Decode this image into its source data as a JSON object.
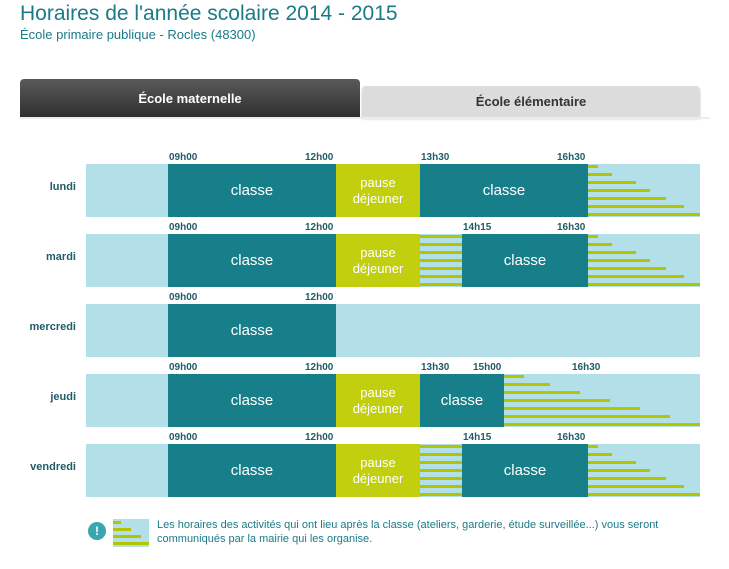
{
  "header": {
    "title": "Horaires de l'année scolaire 2014 - 2015",
    "subtitle": "École primaire publique - Rocles (48300)"
  },
  "tabs": [
    {
      "label": "École maternelle",
      "active": true
    },
    {
      "label": "École élémentaire",
      "active": false
    }
  ],
  "labels": {
    "classe": "classe",
    "pause_line1": "pause",
    "pause_line2": "déjeuner"
  },
  "schedule": [
    {
      "day": "lundi",
      "times": [
        "09h00",
        "12h00",
        "13h30",
        "16h30"
      ]
    },
    {
      "day": "mardi",
      "times": [
        "09h00",
        "12h00",
        "14h15",
        "16h30"
      ]
    },
    {
      "day": "mercredi",
      "times": [
        "09h00",
        "12h00"
      ]
    },
    {
      "day": "jeudi",
      "times": [
        "09h00",
        "12h00",
        "13h30",
        "15h00",
        "16h30"
      ]
    },
    {
      "day": "vendredi",
      "times": [
        "09h00",
        "12h00",
        "14h15",
        "16h30"
      ]
    }
  ],
  "legend": {
    "icon": "info-icon",
    "text": "Les horaires des activités qui ont lieu après la classe (ateliers, garderie, étude surveillée...) vous seront communiqués par la mairie qui les organise."
  },
  "colors": {
    "accent": "#1a7b88",
    "classe": "#177f8a",
    "pause": "#c2cf0e",
    "background_row": "#b3dfe8",
    "activity_bars": "#b3c400"
  }
}
